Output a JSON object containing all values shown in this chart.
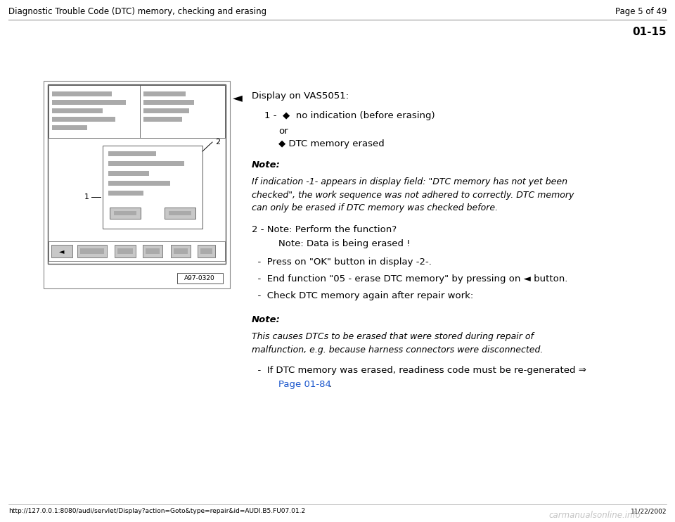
{
  "bg_color": "#ffffff",
  "header_title": "Diagnostic Trouble Code (DTC) memory, checking and erasing",
  "header_page": "Page 5 of 49",
  "section_number": "01-15",
  "footer_url": "http://127.0.0.1:8080/audi/servlet/Display?action=Goto&type=repair&id=AUDI.B5.FU07.01.2",
  "footer_date": "11/22/2002",
  "footer_logo": "carmanualsonline.info",
  "image_label": "A97-0320",
  "arrow_symbol": "◄",
  "display_title": "Display on VAS5051:",
  "note1_label": "Note:",
  "note1_text": "If indication -1- appears in display field: \"DTC memory has not yet been\nchecked\", the work sequence was not adhered to correctly. DTC memory\ncan only be erased if DTC memory was checked before.",
  "item1": "1 -  ◆  no indication (before erasing)",
  "item_or": "or",
  "item2": "◆ DTC memory erased",
  "step1": "2 - Note: Perform the function?",
  "step1b": "Note: Data is being erased !",
  "step2": "Press on \"OK\" button in display -2-.",
  "step3": "End function \"05 - erase DTC memory\" by pressing on ◄ button.",
  "step4": "Check DTC memory again after repair work:",
  "note2_label": "Note:",
  "note2_text": "This causes DTCs to be erased that were stored during repair of\nmalfunction, e.g. because harness connectors were disconnected.",
  "last_bullet_pre": "If DTC memory was erased, readiness code must be re-generated ⇒",
  "link_text": "Page 01-84",
  "link_suffix": " .",
  "link_color": "#1a56cc",
  "text_color": "#000000",
  "gray_bar": "#aaaaaa",
  "gray_light": "#c8c8c8",
  "border_color": "#555555",
  "header_line_color": "#999999",
  "footer_logo_color": "#aaaaaa"
}
